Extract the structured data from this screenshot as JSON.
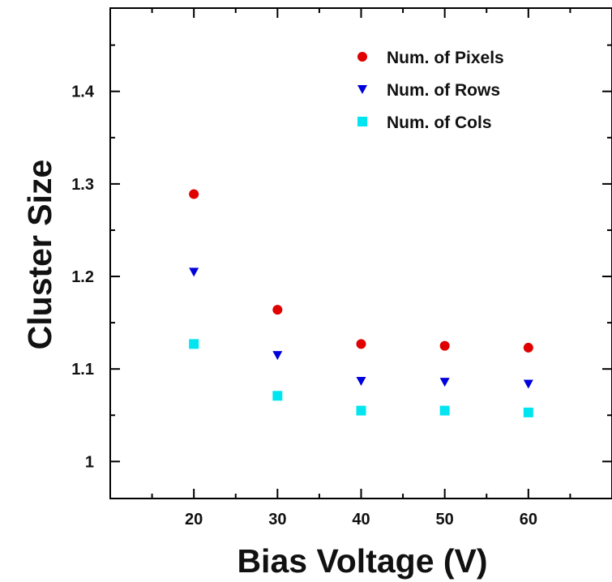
{
  "chart_data": {
    "type": "scatter",
    "xlabel": "Bias Voltage (V)",
    "ylabel": "Cluster Size",
    "xlim": [
      10,
      70
    ],
    "ylim": [
      0.96,
      1.49
    ],
    "x_ticks": [
      20,
      30,
      40,
      50,
      60
    ],
    "x_tick_labels": [
      "20",
      "30",
      "40",
      "50",
      "60"
    ],
    "y_ticks": [
      1.0,
      1.1,
      1.2,
      1.3,
      1.4
    ],
    "y_tick_labels": [
      "1",
      "1.1",
      "1.2",
      "1.3",
      "1.4"
    ],
    "grid": false,
    "legend_position": "top-right",
    "series": [
      {
        "name": "Num. of Pixels",
        "marker": "circle",
        "color": "#e00000",
        "x": [
          20,
          30,
          40,
          50,
          60
        ],
        "y": [
          1.289,
          1.164,
          1.127,
          1.125,
          1.123
        ]
      },
      {
        "name": "Num. of Rows",
        "marker": "triangle-down",
        "color": "#0000dd",
        "x": [
          20,
          30,
          40,
          50,
          60
        ],
        "y": [
          1.205,
          1.115,
          1.087,
          1.086,
          1.084
        ]
      },
      {
        "name": "Num. of Cols",
        "marker": "square",
        "color": "#00e5f0",
        "x": [
          20,
          30,
          40,
          50,
          60
        ],
        "y": [
          1.127,
          1.071,
          1.055,
          1.055,
          1.053
        ]
      }
    ]
  }
}
